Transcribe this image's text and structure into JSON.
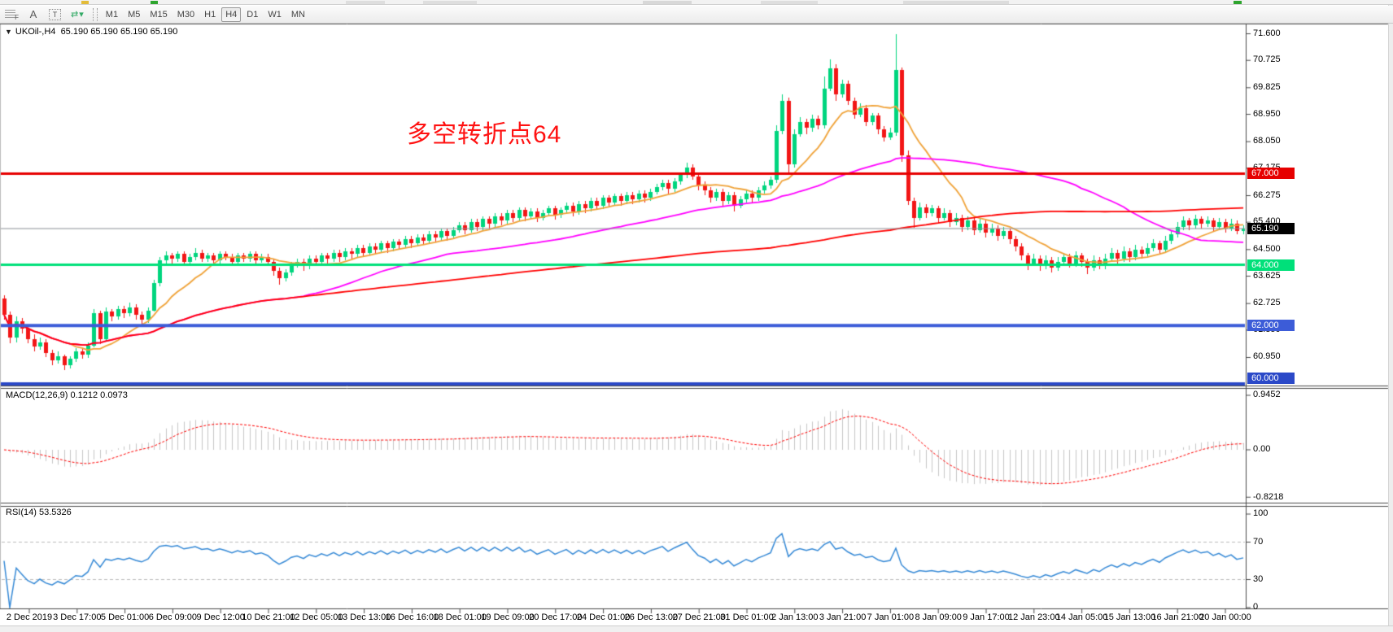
{
  "toolbar": {
    "tools": [
      {
        "name": "grid-fibo-tool",
        "glyph": "F"
      },
      {
        "name": "arrow-text-tool",
        "glyph": "A"
      },
      {
        "name": "text-label-tool",
        "glyph": "T"
      },
      {
        "name": "shapes-dropdown-tool",
        "glyph": "⇄ ▾"
      }
    ],
    "timeframes": [
      "M1",
      "M5",
      "M15",
      "M30",
      "H1",
      "H4",
      "D1",
      "W1",
      "MN"
    ],
    "active_timeframe": "H4"
  },
  "chart_header": {
    "dropdown_glyph": "▼",
    "symbol_period": "UKOil-,H4",
    "ohlc": "65.190 65.190 65.190 65.190"
  },
  "annotation": {
    "text": "多空转折点64",
    "color": "#ff1212"
  },
  "indicator_labels": {
    "macd": "MACD(12,26,9) 0.1212 0.0973",
    "rsi": "RSI(14) 53.5326"
  },
  "chart_data": {
    "type": "candlestick",
    "symbol": "UKOil-",
    "timeframe": "H4",
    "title": "UKOil-,H4  65.190 65.190 65.190 65.190",
    "ylim": [
      60.0,
      71.9
    ],
    "grid": false,
    "candle_colors": {
      "up": "#00d57e",
      "down": "#f21616"
    },
    "price_axis_ticks": [
      "71.600",
      "70.725",
      "69.825",
      "68.950",
      "68.050",
      "67.175",
      "66.275",
      "65.400",
      "64.500",
      "63.625",
      "62.725",
      "61.850",
      "60.950"
    ],
    "price_axis_tick_values": [
      71.6,
      70.725,
      69.825,
      68.95,
      68.05,
      67.175,
      66.275,
      65.4,
      64.5,
      63.625,
      62.725,
      61.85,
      60.95
    ],
    "time_labels": [
      "2 Dec 2019",
      "3 Dec 17:00",
      "5 Dec 01:00",
      "6 Dec 09:00",
      "9 Dec 12:00",
      "10 Dec 21:00",
      "12 Dec 05:00",
      "13 Dec 13:00",
      "16 Dec 16:00",
      "18 Dec 01:00",
      "19 Dec 09:00",
      "20 Dec 17:00",
      "24 Dec 01:00",
      "26 Dec 13:00",
      "27 Dec 21:00",
      "31 Dec 01:00",
      "2 Jan 13:00",
      "3 Jan 21:00",
      "7 Jan 01:00",
      "8 Jan 09:00",
      "9 Jan 17:00",
      "12 Jan 23:00",
      "14 Jan 05:00",
      "15 Jan 13:00",
      "16 Jan 21:00",
      "20 Jan 00:00"
    ],
    "horizontal_lines": [
      {
        "value": 67.0,
        "label": "67.000",
        "color": "#e60000",
        "thickness": 3
      },
      {
        "value": 64.0,
        "label": "64.000",
        "color": "#00e07a",
        "thickness": 3
      },
      {
        "value": 62.0,
        "label": "62.000",
        "color": "#3c5cd8",
        "thickness": 4
      },
      {
        "value": 60.0,
        "label": "60.000",
        "color": "#2b49c8",
        "thickness": 4
      }
    ],
    "current_price": {
      "value": 65.19,
      "label": "65.190",
      "line_color": "#8c9096",
      "box_color": "#000000"
    },
    "moving_averages": [
      {
        "name": "ma-fast",
        "period": 12,
        "color": "#f0a339"
      },
      {
        "name": "ma-medium",
        "period": 50,
        "color": "#ff00ff"
      },
      {
        "name": "ma-slow",
        "period": 150,
        "color": "#ff0000"
      }
    ],
    "indicators": {
      "macd": {
        "params": [
          12,
          26,
          9
        ],
        "macd_value": 0.1212,
        "signal_value": 0.0973,
        "axis_ticks": [
          "0.9452",
          "0.00",
          "-0.8218"
        ],
        "axis_tick_values": [
          0.9452,
          0.0,
          -0.8218
        ],
        "histogram_color": "#c6c6c6",
        "signal_color": "#ff0000",
        "signal_style": "dashed"
      },
      "rsi": {
        "period": 14,
        "value": 53.5326,
        "axis_ticks": [
          "100",
          "70",
          "30",
          "0"
        ],
        "axis_tick_values": [
          100,
          70,
          30,
          0
        ],
        "levels": [
          70,
          30
        ],
        "line_color": "#3589d6",
        "level_color": "#bdbdbd"
      }
    },
    "candles": [
      [
        62.9,
        63.0,
        62.2,
        62.35
      ],
      [
        62.35,
        62.45,
        61.4,
        61.6
      ],
      [
        61.6,
        62.3,
        61.45,
        62.15
      ],
      [
        62.15,
        62.25,
        61.75,
        61.9
      ],
      [
        61.9,
        62.0,
        61.4,
        61.55
      ],
      [
        61.55,
        61.7,
        61.15,
        61.3
      ],
      [
        61.3,
        61.6,
        61.2,
        61.45
      ],
      [
        61.45,
        61.55,
        60.95,
        61.1
      ],
      [
        61.1,
        61.2,
        60.7,
        60.85
      ],
      [
        60.85,
        61.15,
        60.75,
        61.0
      ],
      [
        61.0,
        61.05,
        60.55,
        60.7
      ],
      [
        60.7,
        61.0,
        60.6,
        60.9
      ],
      [
        60.9,
        61.25,
        60.8,
        61.15
      ],
      [
        61.15,
        61.25,
        60.9,
        61.05
      ],
      [
        61.05,
        61.45,
        60.95,
        61.35
      ],
      [
        61.35,
        62.55,
        61.3,
        62.4
      ],
      [
        62.4,
        62.5,
        61.4,
        61.55
      ],
      [
        61.55,
        62.6,
        61.5,
        62.45
      ],
      [
        62.45,
        62.55,
        62.15,
        62.3
      ],
      [
        62.3,
        62.65,
        62.2,
        62.55
      ],
      [
        62.55,
        62.65,
        62.25,
        62.4
      ],
      [
        62.4,
        62.75,
        62.3,
        62.6
      ],
      [
        62.6,
        62.7,
        62.2,
        62.35
      ],
      [
        62.35,
        62.45,
        62.05,
        62.2
      ],
      [
        62.2,
        62.6,
        62.1,
        62.5
      ],
      [
        62.5,
        63.5,
        62.45,
        63.4
      ],
      [
        63.4,
        64.25,
        63.3,
        64.15
      ],
      [
        64.15,
        64.45,
        64.05,
        64.3
      ],
      [
        64.3,
        64.4,
        64.05,
        64.2
      ],
      [
        64.2,
        64.45,
        64.1,
        64.35
      ],
      [
        64.35,
        64.45,
        64.0,
        64.1
      ],
      [
        64.1,
        64.35,
        64.0,
        64.25
      ],
      [
        64.25,
        64.55,
        64.15,
        64.4
      ],
      [
        64.4,
        64.5,
        64.1,
        64.2
      ],
      [
        64.2,
        64.4,
        64.1,
        64.3
      ],
      [
        64.3,
        64.4,
        64.0,
        64.15
      ],
      [
        64.15,
        64.45,
        64.05,
        64.35
      ],
      [
        64.35,
        64.45,
        64.15,
        64.25
      ],
      [
        64.25,
        64.35,
        63.95,
        64.1
      ],
      [
        64.1,
        64.4,
        64.0,
        64.3
      ],
      [
        64.3,
        64.4,
        64.1,
        64.2
      ],
      [
        64.2,
        64.45,
        64.1,
        64.35
      ],
      [
        64.35,
        64.45,
        64.05,
        64.15
      ],
      [
        64.15,
        64.35,
        64.05,
        64.25
      ],
      [
        64.25,
        64.35,
        63.95,
        64.1
      ],
      [
        64.1,
        64.2,
        63.65,
        63.8
      ],
      [
        63.8,
        63.9,
        63.35,
        63.55
      ],
      [
        63.55,
        63.85,
        63.45,
        63.75
      ],
      [
        63.75,
        64.1,
        63.65,
        64.0
      ],
      [
        64.0,
        64.2,
        63.9,
        64.1
      ],
      [
        64.1,
        64.2,
        63.8,
        63.95
      ],
      [
        63.95,
        64.3,
        63.85,
        64.2
      ],
      [
        64.2,
        64.3,
        63.95,
        64.1
      ],
      [
        64.1,
        64.4,
        64.0,
        64.3
      ],
      [
        64.3,
        64.4,
        64.05,
        64.2
      ],
      [
        64.2,
        64.5,
        64.1,
        64.4
      ],
      [
        64.4,
        64.5,
        64.1,
        64.25
      ],
      [
        64.25,
        64.55,
        64.15,
        64.45
      ],
      [
        64.45,
        64.55,
        64.2,
        64.35
      ],
      [
        64.35,
        64.65,
        64.25,
        64.55
      ],
      [
        64.55,
        64.65,
        64.25,
        64.4
      ],
      [
        64.4,
        64.7,
        64.3,
        64.6
      ],
      [
        64.6,
        64.7,
        64.35,
        64.5
      ],
      [
        64.5,
        64.8,
        64.4,
        64.7
      ],
      [
        64.7,
        64.8,
        64.4,
        64.55
      ],
      [
        64.55,
        64.85,
        64.45,
        64.75
      ],
      [
        64.75,
        64.85,
        64.5,
        64.65
      ],
      [
        64.65,
        64.95,
        64.55,
        64.85
      ],
      [
        64.85,
        64.95,
        64.55,
        64.7
      ],
      [
        64.7,
        65.0,
        64.6,
        64.9
      ],
      [
        64.9,
        65.0,
        64.65,
        64.8
      ],
      [
        64.8,
        65.1,
        64.7,
        65.0
      ],
      [
        65.0,
        65.1,
        64.75,
        64.9
      ],
      [
        64.9,
        65.2,
        64.8,
        65.1
      ],
      [
        65.1,
        65.2,
        64.8,
        64.95
      ],
      [
        64.95,
        65.25,
        64.85,
        65.15
      ],
      [
        65.15,
        65.4,
        65.05,
        65.3
      ],
      [
        65.3,
        65.4,
        65.0,
        65.15
      ],
      [
        65.15,
        65.5,
        65.05,
        65.4
      ],
      [
        65.4,
        65.5,
        65.1,
        65.25
      ],
      [
        65.25,
        65.6,
        65.15,
        65.5
      ],
      [
        65.5,
        65.6,
        65.2,
        65.35
      ],
      [
        65.35,
        65.7,
        65.25,
        65.6
      ],
      [
        65.6,
        65.7,
        65.3,
        65.45
      ],
      [
        65.45,
        65.8,
        65.35,
        65.7
      ],
      [
        65.7,
        65.8,
        65.4,
        65.55
      ],
      [
        65.55,
        65.9,
        65.45,
        65.8
      ],
      [
        65.8,
        65.9,
        65.45,
        65.6
      ],
      [
        65.6,
        65.85,
        65.5,
        65.75
      ],
      [
        65.75,
        65.85,
        65.4,
        65.55
      ],
      [
        65.55,
        65.8,
        65.45,
        65.7
      ],
      [
        65.7,
        65.95,
        65.6,
        65.85
      ],
      [
        65.85,
        65.95,
        65.5,
        65.65
      ],
      [
        65.65,
        65.9,
        65.55,
        65.8
      ],
      [
        65.8,
        66.05,
        65.7,
        65.95
      ],
      [
        65.95,
        66.05,
        65.6,
        65.75
      ],
      [
        65.75,
        66.1,
        65.65,
        66.0
      ],
      [
        66.0,
        66.1,
        65.7,
        65.85
      ],
      [
        65.85,
        66.2,
        65.75,
        66.1
      ],
      [
        66.1,
        66.2,
        65.8,
        65.95
      ],
      [
        65.95,
        66.3,
        65.85,
        66.2
      ],
      [
        66.2,
        66.3,
        65.9,
        66.05
      ],
      [
        66.05,
        66.35,
        65.95,
        66.25
      ],
      [
        66.25,
        66.35,
        65.95,
        66.1
      ],
      [
        66.1,
        66.4,
        66.0,
        66.3
      ],
      [
        66.3,
        66.4,
        66.0,
        66.15
      ],
      [
        66.15,
        66.45,
        66.05,
        66.35
      ],
      [
        66.35,
        66.45,
        66.05,
        66.2
      ],
      [
        66.2,
        66.5,
        66.1,
        66.4
      ],
      [
        66.4,
        66.65,
        66.3,
        66.55
      ],
      [
        66.55,
        66.8,
        66.45,
        66.7
      ],
      [
        66.7,
        66.8,
        66.35,
        66.5
      ],
      [
        66.5,
        66.85,
        66.4,
        66.75
      ],
      [
        66.75,
        67.05,
        66.65,
        66.95
      ],
      [
        66.95,
        67.35,
        66.85,
        67.2
      ],
      [
        67.2,
        67.3,
        66.8,
        66.9
      ],
      [
        66.9,
        67.0,
        66.45,
        66.6
      ],
      [
        66.6,
        66.75,
        66.3,
        66.45
      ],
      [
        66.45,
        66.55,
        66.05,
        66.2
      ],
      [
        66.2,
        66.5,
        66.1,
        66.4
      ],
      [
        66.4,
        66.5,
        65.95,
        66.1
      ],
      [
        66.1,
        66.4,
        66.0,
        66.3
      ],
      [
        66.3,
        66.4,
        65.75,
        65.95
      ],
      [
        65.95,
        66.25,
        65.85,
        66.15
      ],
      [
        66.15,
        66.45,
        66.05,
        66.35
      ],
      [
        66.35,
        66.45,
        66.05,
        66.2
      ],
      [
        66.2,
        66.55,
        66.1,
        66.45
      ],
      [
        66.45,
        66.75,
        66.35,
        66.6
      ],
      [
        66.6,
        66.9,
        66.5,
        66.8
      ],
      [
        66.8,
        68.6,
        66.7,
        68.4
      ],
      [
        68.4,
        69.6,
        68.3,
        69.4
      ],
      [
        69.4,
        69.5,
        67.0,
        67.3
      ],
      [
        67.3,
        68.45,
        67.2,
        68.3
      ],
      [
        68.3,
        68.85,
        68.2,
        68.7
      ],
      [
        68.7,
        68.8,
        68.3,
        68.5
      ],
      [
        68.5,
        68.95,
        68.4,
        68.8
      ],
      [
        68.8,
        68.9,
        68.45,
        68.6
      ],
      [
        68.6,
        70.2,
        68.5,
        69.8
      ],
      [
        69.8,
        70.75,
        69.7,
        70.45
      ],
      [
        70.45,
        70.6,
        69.4,
        69.6
      ],
      [
        69.6,
        70.1,
        69.5,
        69.95
      ],
      [
        69.95,
        70.05,
        69.25,
        69.4
      ],
      [
        69.4,
        69.5,
        68.8,
        68.95
      ],
      [
        68.95,
        69.3,
        68.85,
        69.15
      ],
      [
        69.15,
        69.25,
        68.55,
        68.7
      ],
      [
        68.7,
        69.0,
        68.6,
        68.9
      ],
      [
        68.9,
        69.0,
        68.3,
        68.45
      ],
      [
        68.45,
        68.55,
        68.05,
        68.2
      ],
      [
        68.2,
        68.5,
        68.1,
        68.35
      ],
      [
        68.35,
        71.6,
        68.25,
        70.4
      ],
      [
        70.4,
        70.5,
        67.4,
        67.6
      ],
      [
        67.6,
        67.75,
        65.95,
        66.1
      ],
      [
        66.1,
        66.2,
        65.2,
        65.55
      ],
      [
        65.55,
        66.05,
        65.45,
        65.9
      ],
      [
        65.9,
        66.0,
        65.55,
        65.7
      ],
      [
        65.7,
        65.98,
        65.6,
        65.85
      ],
      [
        65.85,
        65.95,
        65.4,
        65.55
      ],
      [
        65.55,
        65.85,
        65.45,
        65.7
      ],
      [
        65.7,
        65.8,
        65.25,
        65.4
      ],
      [
        65.4,
        65.7,
        65.3,
        65.55
      ],
      [
        65.55,
        65.65,
        65.1,
        65.25
      ],
      [
        65.25,
        65.6,
        65.15,
        65.45
      ],
      [
        65.45,
        65.55,
        65.0,
        65.15
      ],
      [
        65.15,
        65.5,
        65.05,
        65.35
      ],
      [
        65.35,
        65.45,
        64.9,
        65.05
      ],
      [
        65.05,
        65.35,
        64.95,
        65.2
      ],
      [
        65.2,
        65.3,
        64.8,
        64.95
      ],
      [
        64.95,
        65.25,
        64.85,
        65.1
      ],
      [
        65.1,
        65.2,
        64.7,
        64.85
      ],
      [
        64.85,
        64.95,
        64.45,
        64.6
      ],
      [
        64.6,
        64.7,
        64.15,
        64.3
      ],
      [
        64.3,
        64.4,
        63.85,
        64.05
      ],
      [
        64.05,
        64.35,
        63.95,
        64.2
      ],
      [
        64.2,
        64.3,
        63.8,
        63.95
      ],
      [
        63.95,
        64.3,
        63.85,
        64.15
      ],
      [
        64.15,
        64.25,
        63.75,
        63.9
      ],
      [
        63.9,
        64.25,
        63.8,
        64.1
      ],
      [
        64.1,
        64.4,
        64.0,
        64.25
      ],
      [
        64.25,
        64.35,
        63.9,
        64.05
      ],
      [
        64.05,
        64.45,
        63.95,
        64.3
      ],
      [
        64.3,
        64.4,
        63.95,
        64.1
      ],
      [
        64.1,
        64.2,
        63.7,
        63.9
      ],
      [
        63.9,
        64.3,
        63.8,
        64.15
      ],
      [
        64.15,
        64.25,
        63.85,
        63.95
      ],
      [
        63.95,
        64.35,
        63.85,
        64.2
      ],
      [
        64.2,
        64.55,
        64.1,
        64.4
      ],
      [
        64.4,
        64.5,
        64.05,
        64.2
      ],
      [
        64.2,
        64.6,
        64.1,
        64.45
      ],
      [
        64.45,
        64.55,
        64.1,
        64.25
      ],
      [
        64.25,
        64.65,
        64.15,
        64.5
      ],
      [
        64.5,
        64.6,
        64.2,
        64.35
      ],
      [
        64.35,
        64.7,
        64.25,
        64.55
      ],
      [
        64.55,
        64.85,
        64.45,
        64.7
      ],
      [
        64.7,
        64.8,
        64.35,
        64.5
      ],
      [
        64.5,
        64.95,
        64.4,
        64.8
      ],
      [
        64.8,
        65.15,
        64.7,
        65.0
      ],
      [
        65.0,
        65.4,
        64.9,
        65.25
      ],
      [
        65.25,
        65.6,
        65.15,
        65.45
      ],
      [
        65.45,
        65.55,
        65.15,
        65.3
      ],
      [
        65.3,
        65.65,
        65.2,
        65.5
      ],
      [
        65.5,
        65.6,
        65.2,
        65.35
      ],
      [
        65.35,
        65.6,
        65.25,
        65.45
      ],
      [
        65.45,
        65.55,
        65.1,
        65.25
      ],
      [
        65.25,
        65.55,
        65.15,
        65.4
      ],
      [
        65.4,
        65.5,
        65.05,
        65.2
      ],
      [
        65.2,
        65.5,
        65.1,
        65.35
      ],
      [
        65.35,
        65.45,
        65.0,
        65.1
      ],
      [
        65.1,
        65.3,
        65.0,
        65.19
      ]
    ]
  }
}
